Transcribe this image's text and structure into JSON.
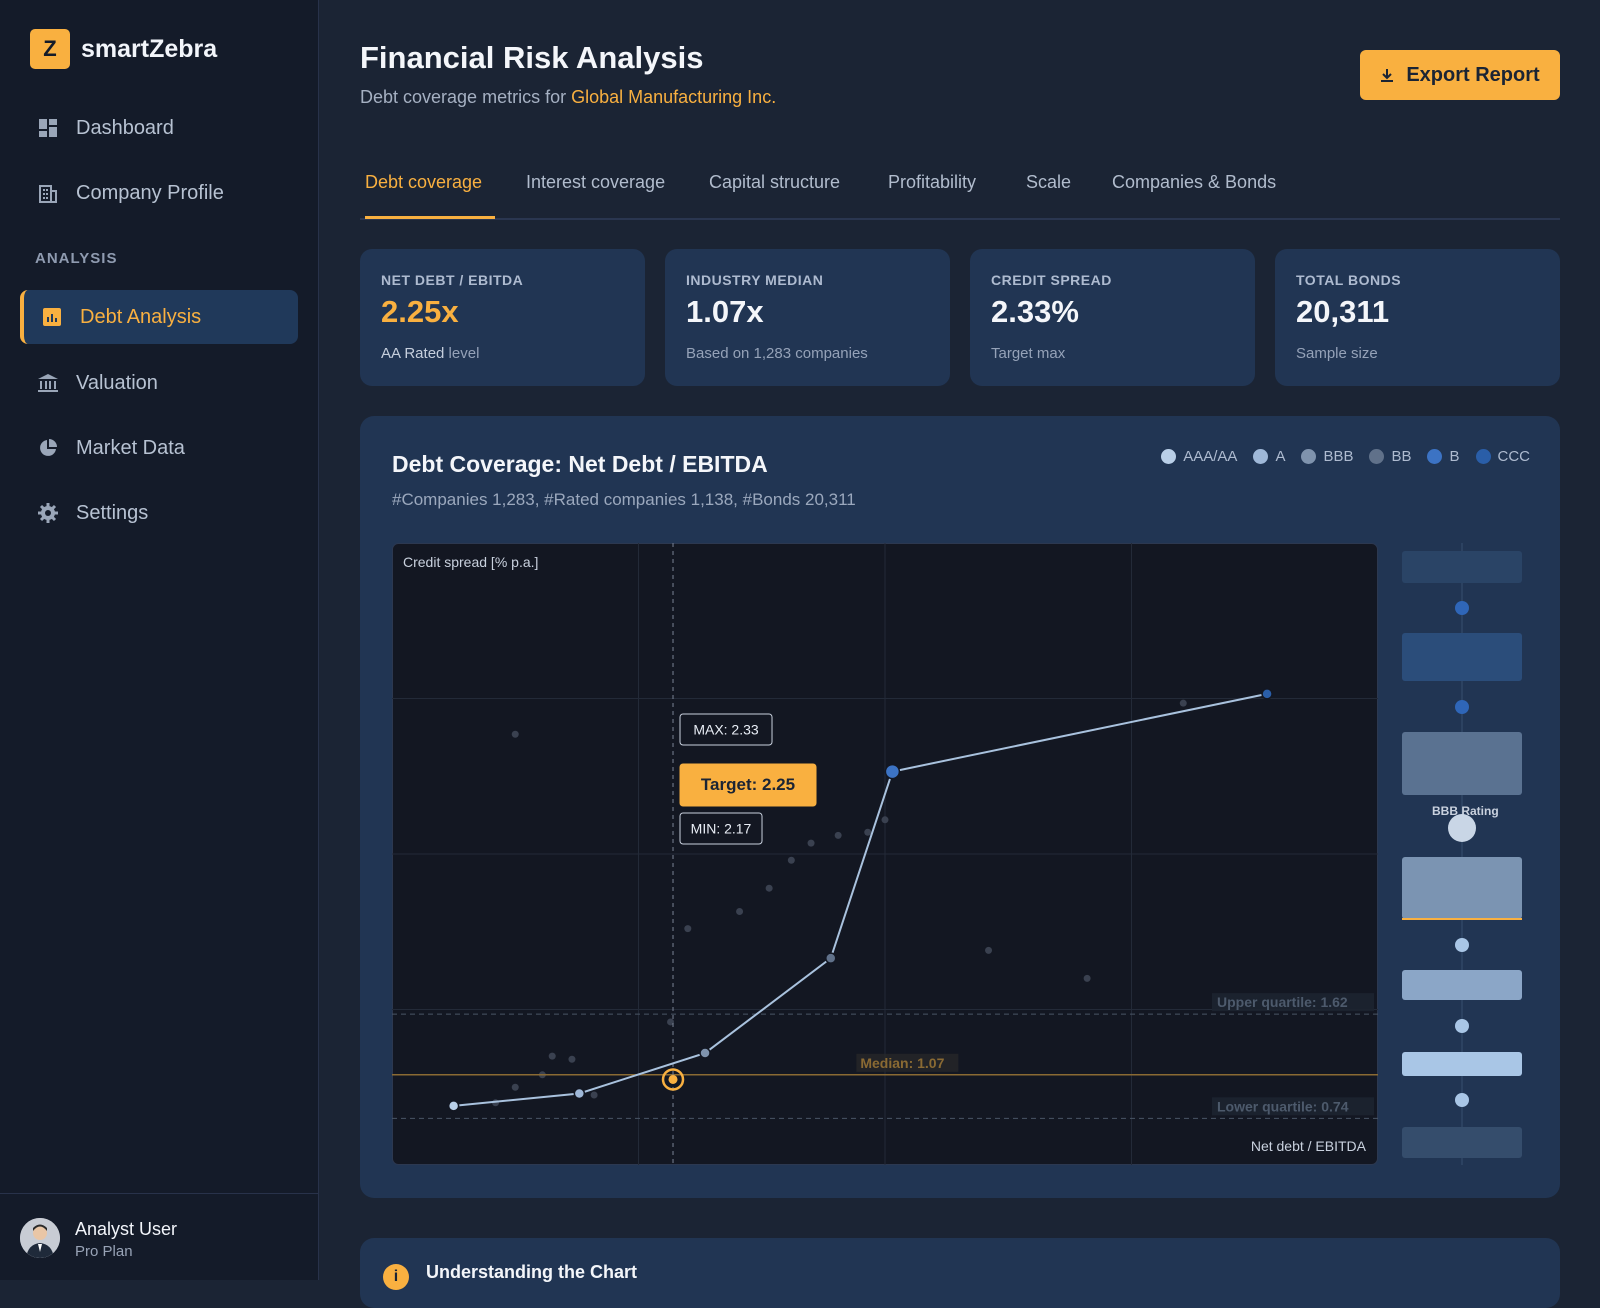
{
  "app": {
    "logo_letter": "Z",
    "name": "smartZebra"
  },
  "sidebar": {
    "items_top": [
      {
        "label": "Dashboard",
        "icon": "dashboard-icon"
      },
      {
        "label": "Company Profile",
        "icon": "building-icon"
      }
    ],
    "section_label": "ANALYSIS",
    "items_analysis": [
      {
        "label": "Debt Analysis",
        "icon": "bar-chart-icon",
        "active": true
      },
      {
        "label": "Valuation",
        "icon": "bank-icon"
      },
      {
        "label": "Market Data",
        "icon": "pie-chart-icon"
      },
      {
        "label": "Settings",
        "icon": "gear-icon"
      }
    ],
    "user": {
      "name": "Analyst User",
      "plan": "Pro Plan"
    }
  },
  "header": {
    "title": "Financial Risk Analysis",
    "subtitle_prefix": "Debt coverage metrics for ",
    "company": "Global Manufacturing Inc.",
    "export_label": "Export Report"
  },
  "tabs": [
    "Debt coverage",
    "Interest coverage",
    "Capital structure",
    "Profitability",
    "Scale",
    "Companies & Bonds"
  ],
  "cards": [
    {
      "label": "NET DEBT / EBITDA",
      "value": "2.25x",
      "note_strong": "AA Rated",
      "note": " level",
      "accent": true
    },
    {
      "label": "INDUSTRY MEDIAN",
      "value": "1.07x",
      "note_strong": "",
      "note": "Based on 1,283 companies",
      "accent": false
    },
    {
      "label": "CREDIT SPREAD",
      "value": "2.33%",
      "note_strong": "",
      "note": "Target max",
      "accent": false
    },
    {
      "label": "TOTAL BONDS",
      "value": "20,311",
      "note_strong": "",
      "note": "Sample size",
      "accent": false
    }
  ],
  "panel": {
    "title": "Debt Coverage: Net Debt / EBITDA",
    "subtitle": "#Companies 1,283, #Rated companies 1,138, #Bonds 20,311",
    "legend": [
      {
        "label": "AAA/AA",
        "color": "#b9cfe8"
      },
      {
        "label": "A",
        "color": "#9fb8d8"
      },
      {
        "label": "BBB",
        "color": "#7f93ad"
      },
      {
        "label": "BB",
        "color": "#60718a"
      },
      {
        "label": "B",
        "color": "#3c73c4"
      },
      {
        "label": "CCC",
        "color": "#2a5ea8"
      }
    ],
    "side_label": "BBB Rating"
  },
  "chart_data": {
    "type": "line",
    "ylabel": "Credit spread [% p.a.]",
    "xlabel": "Net debt / EBITDA",
    "xlim": [
      0,
      4
    ],
    "ylim": [
      0,
      4
    ],
    "series": [
      {
        "name": "Rating curve",
        "x": [
          0.25,
          0.76,
          1.27,
          1.78,
          2.03,
          3.55
        ],
        "y": [
          0.38,
          0.46,
          0.72,
          1.33,
          2.53,
          3.03
        ],
        "ratings": [
          "AAA/AA",
          "A",
          "BBB",
          "BB",
          "B",
          "CCC"
        ]
      }
    ],
    "scatter": {
      "x": [
        0.5,
        0.42,
        0.5,
        0.61,
        0.73,
        0.65,
        0.82,
        1.13,
        1.2,
        1.41,
        1.53,
        1.62,
        1.7,
        1.81,
        1.93,
        2.0,
        2.42,
        2.82,
        3.21
      ],
      "y": [
        2.77,
        0.4,
        0.5,
        0.58,
        0.68,
        0.7,
        0.45,
        0.92,
        1.52,
        1.63,
        1.78,
        1.96,
        2.07,
        2.12,
        2.14,
        2.22,
        1.38,
        1.2,
        2.97
      ]
    },
    "target": {
      "x": 1.14,
      "y": 0.55,
      "label": "Target: 2.25"
    },
    "max_label": "MAX: 2.33",
    "min_label": "MIN: 2.17",
    "hlines": [
      {
        "y": 0.97,
        "label": "Upper quartile: 1.62",
        "kind": "dashed"
      },
      {
        "y": 0.58,
        "label": "Median: 1.07",
        "kind": "median"
      },
      {
        "y": 0.3,
        "label": "Lower quartile: 0.74",
        "kind": "dashed"
      }
    ]
  },
  "info": {
    "title": "Understanding the Chart"
  }
}
